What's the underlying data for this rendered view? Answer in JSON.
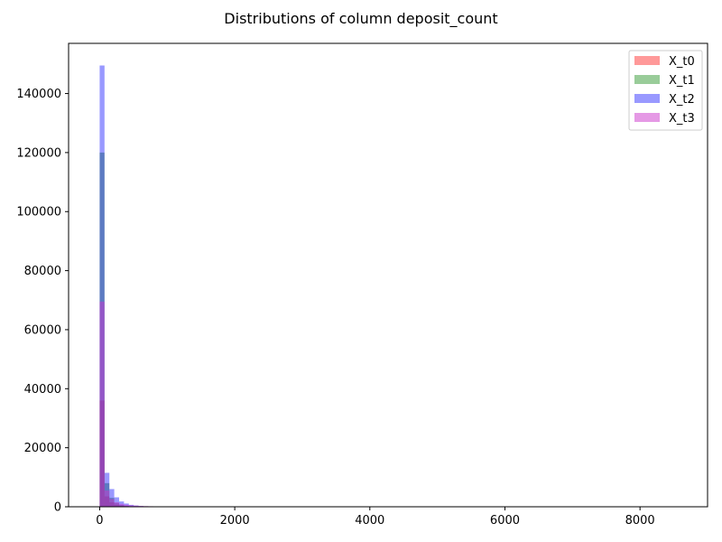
{
  "chart_data": {
    "type": "bar",
    "title": "Distributions of column deposit_count",
    "xlabel": "",
    "ylabel": "",
    "xlim": [
      -460,
      9000
    ],
    "ylim": [
      0,
      157000
    ],
    "xticks": [
      0,
      2000,
      4000,
      6000,
      8000
    ],
    "yticks": [
      0,
      20000,
      40000,
      60000,
      80000,
      100000,
      120000,
      140000
    ],
    "grid": false,
    "legend_position": "top-right",
    "bin_width": 72,
    "series": [
      {
        "name": "X_t0",
        "color": "#ff0000",
        "opacity": 0.4,
        "bins": [
          {
            "x0": 0,
            "x1": 72,
            "count": 36000
          },
          {
            "x0": 72,
            "x1": 144,
            "count": 3500
          },
          {
            "x0": 144,
            "x1": 216,
            "count": 1500
          },
          {
            "x0": 216,
            "x1": 288,
            "count": 700
          },
          {
            "x0": 288,
            "x1": 360,
            "count": 350
          },
          {
            "x0": 360,
            "x1": 432,
            "count": 180
          },
          {
            "x0": 432,
            "x1": 504,
            "count": 90
          }
        ]
      },
      {
        "name": "X_t1",
        "color": "#008000",
        "opacity": 0.4,
        "bins": [
          {
            "x0": 0,
            "x1": 72,
            "count": 120000
          },
          {
            "x0": 72,
            "x1": 144,
            "count": 8000
          },
          {
            "x0": 144,
            "x1": 216,
            "count": 3000
          },
          {
            "x0": 216,
            "x1": 288,
            "count": 1300
          },
          {
            "x0": 288,
            "x1": 360,
            "count": 600
          },
          {
            "x0": 360,
            "x1": 432,
            "count": 300
          },
          {
            "x0": 432,
            "x1": 504,
            "count": 150
          }
        ]
      },
      {
        "name": "X_t2",
        "color": "#0000ff",
        "opacity": 0.4,
        "bins": [
          {
            "x0": 0,
            "x1": 72,
            "count": 149500
          },
          {
            "x0": 72,
            "x1": 144,
            "count": 11500
          },
          {
            "x0": 144,
            "x1": 216,
            "count": 6000
          },
          {
            "x0": 216,
            "x1": 288,
            "count": 3200
          },
          {
            "x0": 288,
            "x1": 360,
            "count": 1800
          },
          {
            "x0": 360,
            "x1": 432,
            "count": 1100
          },
          {
            "x0": 432,
            "x1": 504,
            "count": 650
          },
          {
            "x0": 504,
            "x1": 576,
            "count": 420
          },
          {
            "x0": 576,
            "x1": 648,
            "count": 260
          },
          {
            "x0": 648,
            "x1": 720,
            "count": 170
          },
          {
            "x0": 720,
            "x1": 792,
            "count": 110
          },
          {
            "x0": 792,
            "x1": 864,
            "count": 80
          }
        ]
      },
      {
        "name": "X_t3",
        "color": "#cc33cc",
        "opacity": 0.5,
        "bins": [
          {
            "x0": 0,
            "x1": 72,
            "count": 69500
          },
          {
            "x0": 72,
            "x1": 144,
            "count": 5500
          },
          {
            "x0": 144,
            "x1": 216,
            "count": 2600
          },
          {
            "x0": 216,
            "x1": 288,
            "count": 1500
          },
          {
            "x0": 288,
            "x1": 360,
            "count": 1000
          },
          {
            "x0": 360,
            "x1": 432,
            "count": 700
          },
          {
            "x0": 432,
            "x1": 504,
            "count": 500
          },
          {
            "x0": 504,
            "x1": 576,
            "count": 380
          },
          {
            "x0": 576,
            "x1": 648,
            "count": 290
          },
          {
            "x0": 648,
            "x1": 720,
            "count": 230
          },
          {
            "x0": 720,
            "x1": 792,
            "count": 180
          },
          {
            "x0": 792,
            "x1": 864,
            "count": 150
          },
          {
            "x0": 864,
            "x1": 936,
            "count": 120
          },
          {
            "x0": 936,
            "x1": 1008,
            "count": 100
          },
          {
            "x0": 1008,
            "x1": 1080,
            "count": 90
          },
          {
            "x0": 1080,
            "x1": 1152,
            "count": 80
          },
          {
            "x0": 1152,
            "x1": 1224,
            "count": 70
          },
          {
            "x0": 1224,
            "x1": 1296,
            "count": 60
          },
          {
            "x0": 1296,
            "x1": 1368,
            "count": 50
          },
          {
            "x0": 1368,
            "x1": 1440,
            "count": 45
          }
        ]
      }
    ]
  }
}
